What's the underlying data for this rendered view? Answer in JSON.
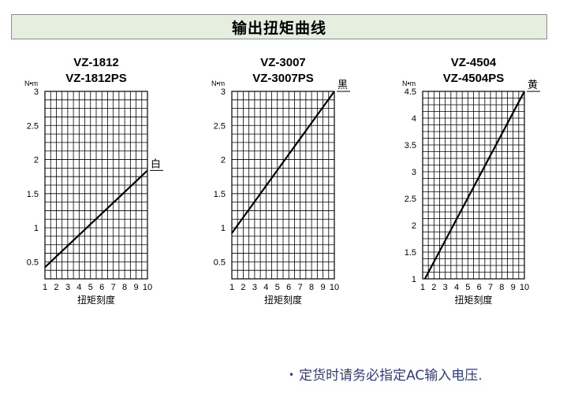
{
  "header": {
    "title": "输出扭矩曲线"
  },
  "note": {
    "bullet": "•",
    "text": "定货时请务必指定AC输入电压."
  },
  "chart_data": [
    {
      "type": "line",
      "title_lines": [
        "VZ-1812",
        "VZ-1812PS"
      ],
      "unit": "N•m",
      "xlabel": "扭矩刻度",
      "x_ticks": [
        1,
        2,
        3,
        4,
        5,
        6,
        7,
        8,
        9,
        10
      ],
      "xlim": [
        1,
        10
      ],
      "ylim": [
        0.25,
        3
      ],
      "y_ticks": [
        0.5,
        1,
        1.5,
        2,
        2.5,
        3
      ],
      "grid_h": 0.125,
      "series": [
        {
          "name": "白",
          "x": [
            1,
            10
          ],
          "y": [
            0.42,
            1.84
          ]
        }
      ]
    },
    {
      "type": "line",
      "title_lines": [
        "VZ-3007",
        "VZ-3007PS"
      ],
      "unit": "N•m",
      "xlabel": "扭矩刻度",
      "x_ticks": [
        1,
        2,
        3,
        4,
        5,
        6,
        7,
        8,
        9,
        10
      ],
      "xlim": [
        1,
        10
      ],
      "ylim": [
        0.25,
        3
      ],
      "y_ticks": [
        0.5,
        1,
        1.5,
        2,
        2.5,
        3
      ],
      "grid_h": 0.125,
      "series": [
        {
          "name": "黑",
          "x": [
            1,
            10
          ],
          "y": [
            0.92,
            3.0
          ]
        }
      ]
    },
    {
      "type": "line",
      "title_lines": [
        "VZ-4504",
        "VZ-4504PS"
      ],
      "unit": "N•m",
      "xlabel": "扭矩刻度",
      "x_ticks": [
        1,
        2,
        3,
        4,
        5,
        6,
        7,
        8,
        9,
        10
      ],
      "xlim": [
        1,
        10
      ],
      "ylim": [
        1,
        4.5
      ],
      "y_ticks": [
        1,
        1.5,
        2,
        2.5,
        3,
        3.5,
        4,
        4.5
      ],
      "grid_h": 0.125,
      "series": [
        {
          "name": "黄",
          "x": [
            1.2,
            10
          ],
          "y": [
            1.0,
            4.5
          ]
        }
      ]
    }
  ]
}
